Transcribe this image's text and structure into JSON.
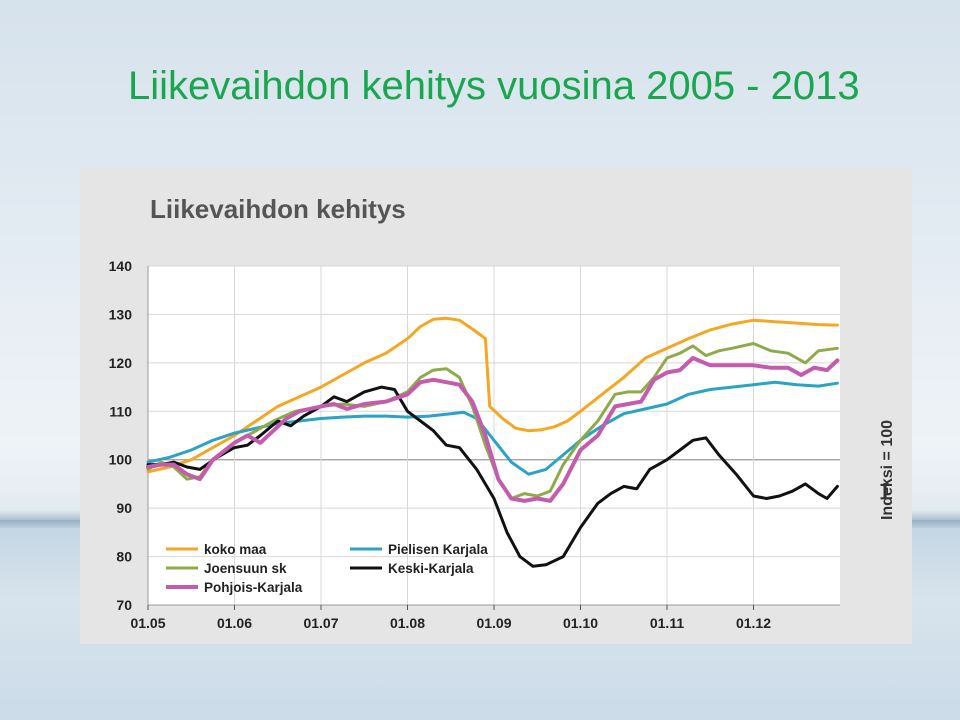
{
  "slide": {
    "title": "Liikevaihdon kehitys vuosina 2005 - 2013"
  },
  "chart_data": {
    "type": "line",
    "title": "Liikevaihdon kehitys",
    "ylabel": "",
    "side_note": "Indeksi = 100",
    "ylim": [
      70,
      140
    ],
    "yticks": [
      70,
      80,
      90,
      100,
      110,
      120,
      130,
      140
    ],
    "xlim": [
      2005.0,
      2013.0
    ],
    "xticks": [
      {
        "label": "01.05",
        "x": 2005.0
      },
      {
        "label": "01.06",
        "x": 2006.0
      },
      {
        "label": "01.07",
        "x": 2007.0
      },
      {
        "label": "01.08",
        "x": 2008.0
      },
      {
        "label": "01.09",
        "x": 2009.0
      },
      {
        "label": "01.10",
        "x": 2010.0
      },
      {
        "label": "01.11",
        "x": 2011.0
      },
      {
        "label": "01.12",
        "x": 2012.0
      }
    ],
    "reference_line": 100,
    "legend_position": "bottom-left",
    "series": [
      {
        "name": "koko maa",
        "color": "#f5a623",
        "x": [
          2005.0,
          2005.25,
          2005.5,
          2005.75,
          2006.0,
          2006.25,
          2006.5,
          2006.75,
          2007.0,
          2007.25,
          2007.5,
          2007.75,
          2008.0,
          2008.15,
          2008.3,
          2008.45,
          2008.6,
          2008.75,
          2008.9,
          2008.95,
          2009.1,
          2009.25,
          2009.4,
          2009.55,
          2009.7,
          2009.85,
          2010.0,
          2010.25,
          2010.5,
          2010.75,
          2011.0,
          2011.25,
          2011.5,
          2011.75,
          2012.0,
          2012.25,
          2012.5,
          2012.75,
          2012.97
        ],
        "y": [
          97.5,
          98.5,
          100,
          102.5,
          105,
          108,
          111,
          113,
          115,
          117.5,
          120,
          122,
          125,
          127.5,
          129,
          129.2,
          128.8,
          127,
          125,
          111,
          108.5,
          106.5,
          106,
          106.2,
          106.8,
          108,
          110,
          113.5,
          117,
          121,
          123,
          125,
          126.8,
          128,
          128.8,
          128.5,
          128.2,
          127.9,
          127.8
        ]
      },
      {
        "name": "Pielisen Karjala",
        "color": "#2aa3c4",
        "x": [
          2005.0,
          2005.25,
          2005.5,
          2005.75,
          2006.0,
          2006.25,
          2006.5,
          2006.75,
          2007.0,
          2007.25,
          2007.5,
          2007.75,
          2008.0,
          2008.25,
          2008.5,
          2008.65,
          2008.8,
          2009.0,
          2009.2,
          2009.4,
          2009.6,
          2009.8,
          2010.0,
          2010.25,
          2010.5,
          2010.75,
          2011.0,
          2011.25,
          2011.5,
          2011.75,
          2012.0,
          2012.25,
          2012.5,
          2012.75,
          2012.97
        ],
        "y": [
          99.5,
          100.5,
          102,
          104,
          105.5,
          106.5,
          107.5,
          108,
          108.5,
          108.8,
          109,
          109,
          108.8,
          109,
          109.5,
          109.8,
          108.5,
          104,
          99.5,
          97,
          98,
          101,
          104,
          107,
          109.5,
          110.5,
          111.5,
          113.5,
          114.5,
          115,
          115.5,
          116,
          115.5,
          115.2,
          115.8
        ]
      },
      {
        "name": "Joensuun sk",
        "color": "#8faa48",
        "x": [
          2005.0,
          2005.15,
          2005.3,
          2005.45,
          2005.6,
          2005.75,
          2006.0,
          2006.2,
          2006.45,
          2006.7,
          2007.0,
          2007.25,
          2007.5,
          2007.75,
          2008.0,
          2008.15,
          2008.3,
          2008.45,
          2008.6,
          2008.75,
          2008.9,
          2009.05,
          2009.2,
          2009.35,
          2009.5,
          2009.65,
          2009.8,
          2010.0,
          2010.2,
          2010.4,
          2010.55,
          2010.7,
          2010.85,
          2011.0,
          2011.15,
          2011.3,
          2011.45,
          2011.6,
          2011.75,
          2012.0,
          2012.2,
          2012.4,
          2012.6,
          2012.75,
          2012.97
        ],
        "y": [
          98,
          99.5,
          98.5,
          96,
          96.5,
          100,
          103.5,
          105.5,
          108,
          110,
          111,
          111.5,
          111,
          112,
          114,
          117,
          118.5,
          118.8,
          117,
          111,
          103,
          96,
          92,
          93,
          92.5,
          93.5,
          99,
          104,
          108,
          113.5,
          114,
          114,
          117,
          121,
          122,
          123.5,
          121.5,
          122.5,
          123,
          124,
          122.5,
          122,
          120,
          122.5,
          123
        ]
      },
      {
        "name": "Keski-Karjala",
        "color": "#111111",
        "x": [
          2005.0,
          2005.15,
          2005.3,
          2005.45,
          2005.6,
          2005.8,
          2006.0,
          2006.15,
          2006.3,
          2006.5,
          2006.65,
          2006.8,
          2007.0,
          2007.15,
          2007.3,
          2007.5,
          2007.7,
          2007.85,
          2008.0,
          2008.15,
          2008.3,
          2008.45,
          2008.6,
          2008.8,
          2009.0,
          2009.15,
          2009.3,
          2009.45,
          2009.6,
          2009.8,
          2010.0,
          2010.2,
          2010.35,
          2010.5,
          2010.65,
          2010.8,
          2011.0,
          2011.15,
          2011.3,
          2011.45,
          2011.6,
          2011.8,
          2012.0,
          2012.15,
          2012.3,
          2012.45,
          2012.6,
          2012.75,
          2012.85,
          2012.97
        ],
        "y": [
          99,
          99,
          99.5,
          98.5,
          98,
          100.5,
          102.5,
          103,
          105,
          108,
          107,
          109,
          111,
          113,
          112,
          114,
          115,
          114.5,
          110,
          108,
          106,
          103,
          102.5,
          98,
          92,
          85,
          80,
          78,
          78.3,
          80,
          86,
          91,
          93,
          94.5,
          94,
          98,
          100,
          102,
          104,
          104.5,
          101,
          97,
          92.5,
          92,
          92.5,
          93.5,
          95,
          93,
          92,
          94.5
        ]
      },
      {
        "name": "Pohjois-Karjala",
        "color": "#c45cae",
        "x": [
          2005.0,
          2005.15,
          2005.3,
          2005.45,
          2005.6,
          2005.75,
          2006.0,
          2006.15,
          2006.3,
          2006.45,
          2006.6,
          2006.75,
          2007.0,
          2007.15,
          2007.3,
          2007.5,
          2007.75,
          2008.0,
          2008.15,
          2008.3,
          2008.45,
          2008.6,
          2008.75,
          2008.9,
          2009.05,
          2009.2,
          2009.35,
          2009.5,
          2009.65,
          2009.8,
          2010.0,
          2010.2,
          2010.4,
          2010.55,
          2010.7,
          2010.85,
          2011.0,
          2011.15,
          2011.3,
          2011.5,
          2011.7,
          2011.85,
          2012.0,
          2012.2,
          2012.4,
          2012.55,
          2012.7,
          2012.85,
          2012.97
        ],
        "y": [
          98.5,
          99,
          99,
          97,
          96,
          100,
          103.5,
          105,
          103.5,
          106,
          108.5,
          110,
          111,
          111.5,
          110.5,
          111.5,
          112,
          113.5,
          116,
          116.5,
          116,
          115.5,
          112,
          105,
          96,
          92,
          91.5,
          92,
          91.5,
          95,
          102,
          105,
          111,
          111.5,
          112,
          116.5,
          118,
          118.5,
          121,
          119.5,
          119.5,
          119.5,
          119.5,
          119,
          119,
          117.5,
          119,
          118.5,
          120.5
        ]
      }
    ]
  }
}
